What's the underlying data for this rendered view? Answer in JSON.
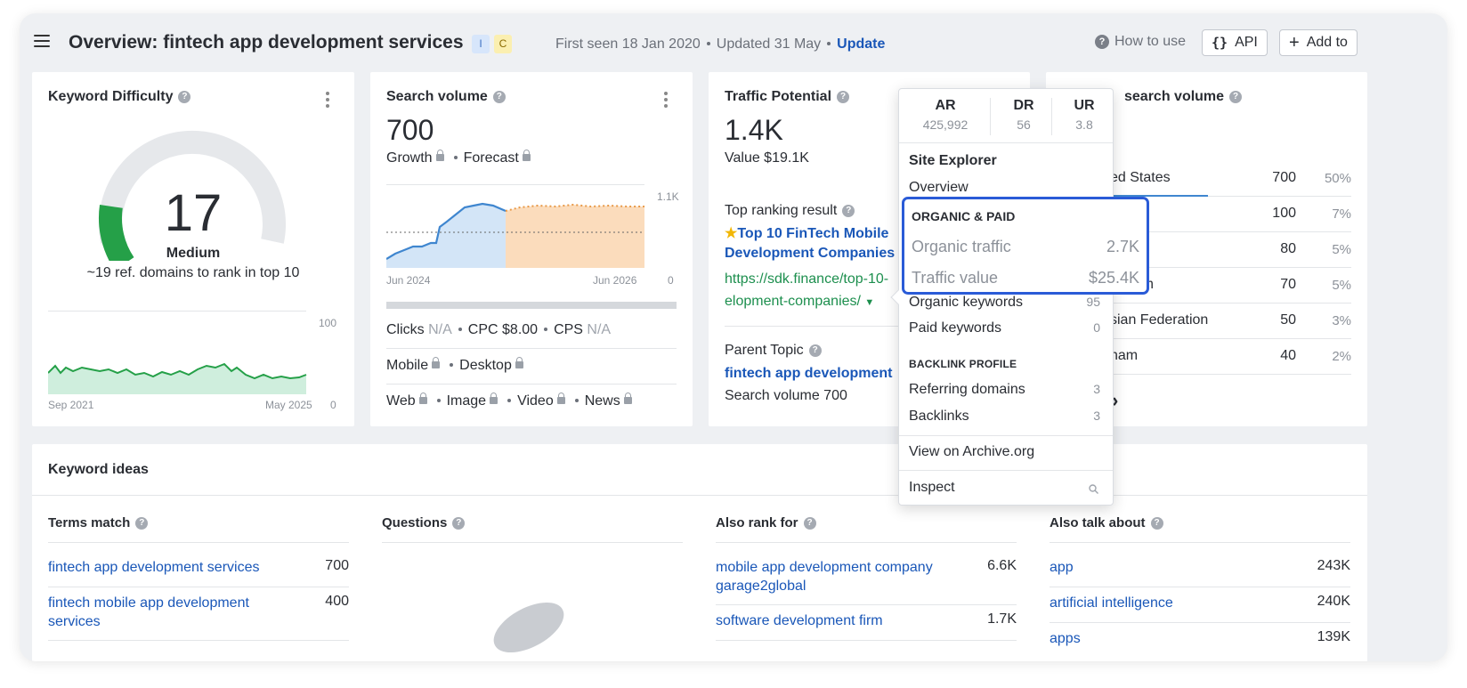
{
  "header": {
    "title": "Overview: fintech app development services",
    "badge_i": "I",
    "badge_c": "C",
    "first_seen": "First seen 18 Jan 2020",
    "updated": "Updated 31 May",
    "update_link": "Update",
    "how_to_use": "How to use",
    "api_label": "API",
    "add_to_label": "Add to",
    "api_icon_text": "{}",
    "add_icon_text": "+"
  },
  "kd_card": {
    "title": "Keyword Difficulty",
    "value": "17",
    "level": "Medium",
    "note": "~19 ref. domains to rank in top 10",
    "chart_max": "100",
    "chart_min": "0",
    "x_start": "Sep 2021",
    "x_end": "May 2025",
    "gauge_fraction": 0.17
  },
  "sv_card": {
    "title": "Search volume",
    "value": "700",
    "growth": "Growth",
    "forecast": "Forecast",
    "y_max": "1.1K",
    "y_min": "0",
    "x_start": "Jun 2024",
    "x_end": "Jun 2026",
    "clicks_label": "Clicks",
    "clicks_value": "N/A",
    "cpc": "CPC $8.00",
    "cps_label": "CPS",
    "cps_value": "N/A",
    "mobile": "Mobile",
    "desktop": "Desktop",
    "web": "Web",
    "image": "Image",
    "video": "Video",
    "news": "News"
  },
  "tp_card": {
    "title": "Traffic Potential",
    "value": "1.4K",
    "value_usd": "Value $19.1K",
    "top_ranking_label": "Top ranking result",
    "top_title_line1": "Top 10 FinTech Mobile",
    "top_title_line2": "Development Companies",
    "url_line1": "https://sdk.finance/top-10-",
    "url_line2": "elopment-companies/",
    "parent_topic_label": "Parent Topic",
    "parent_topic": "fintech app development",
    "parent_sv": "Search volume 700"
  },
  "gsv_card": {
    "title": "search volume",
    "countries": [
      {
        "name": "ed States",
        "value": "700",
        "pct": "50%"
      },
      {
        "name": "",
        "value": "100",
        "pct": "7%"
      },
      {
        "name": "",
        "value": "80",
        "pct": "5%"
      },
      {
        "name": "ngdom",
        "value": "70",
        "pct": "5%"
      },
      {
        "name": "sian Federation",
        "value": "50",
        "pct": "3%"
      },
      {
        "name": "nam",
        "value": "40",
        "pct": "2%"
      }
    ],
    "more_glyph": "›"
  },
  "popover": {
    "ar_label": "AR",
    "ar_value": "425,992",
    "dr_label": "DR",
    "dr_value": "56",
    "ur_label": "UR",
    "ur_value": "3.8",
    "site_explorer": "Site Explorer",
    "overview": "Overview",
    "organic_paid": "ORGANIC & PAID",
    "organic_traffic": "Organic traffic",
    "organic_traffic_value": "2.7K",
    "traffic_value": "Traffic value",
    "traffic_value_value": "$25.4K",
    "organic_keywords": "Organic keywords",
    "organic_keywords_value": "95",
    "paid_keywords": "Paid keywords",
    "paid_keywords_value": "0",
    "backlink_profile": "BACKLINK PROFILE",
    "referring_domains": "Referring domains",
    "referring_domains_value": "3",
    "backlinks": "Backlinks",
    "backlinks_value": "3",
    "view_archive": "View on Archive.org",
    "inspect": "Inspect"
  },
  "keyword_ideas": {
    "title": "Keyword ideas",
    "terms_match": {
      "title": "Terms match",
      "items": [
        {
          "text": "fintech app development services",
          "value": "700"
        },
        {
          "text": "fintech mobile app development services",
          "value": "400"
        }
      ]
    },
    "questions": {
      "title": "Questions"
    },
    "also_rank_for": {
      "title": "Also rank for",
      "items": [
        {
          "text": "mobile app development company garage2global",
          "value": "6.6K"
        },
        {
          "text": "software development firm",
          "value": "1.7K"
        }
      ]
    },
    "also_talk_about": {
      "title": "Also talk about",
      "items": [
        {
          "text": "app",
          "value": "243K"
        },
        {
          "text": "artificial intelligence",
          "value": "240K"
        },
        {
          "text": "apps",
          "value": "139K"
        }
      ]
    }
  },
  "colors": {
    "accent_blue": "#1a57b8",
    "highlight_border": "#2a5bd7",
    "kd_green": "#25a048",
    "url_green": "#1d8f4e"
  }
}
